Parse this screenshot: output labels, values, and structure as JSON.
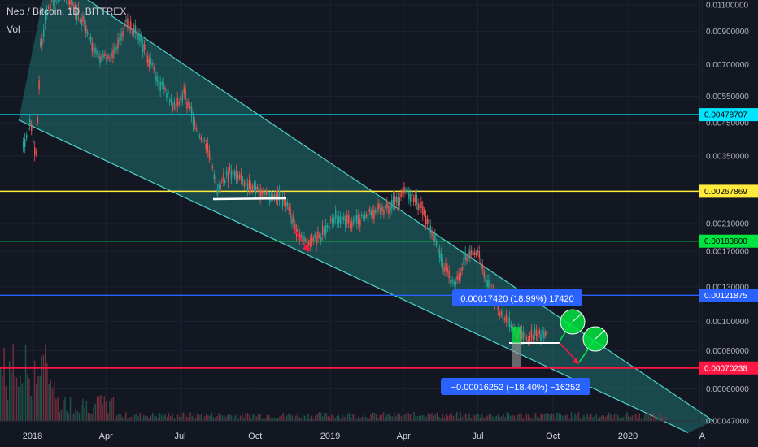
{
  "header": {
    "title": "Neo / Bitcoin, 1D, BITTREX",
    "volume_label": "Vol"
  },
  "chart_data": {
    "type": "candlestick",
    "symbol": "Neo / Bitcoin",
    "interval": "1D",
    "exchange": "BITTREX",
    "y_scale": "log",
    "y_ticks": [
      "0.01100000",
      "0.00900000",
      "0.00700000",
      "0.00550000",
      "0.00450000",
      "0.00350000",
      "0.00210000",
      "0.00170000",
      "0.00130000",
      "0.00100000",
      "0.00080000",
      "0.00060000",
      "0.00047000"
    ],
    "x_ticks": [
      "2018",
      "Apr",
      "Jul",
      "Oct",
      "2019",
      "Apr",
      "Jul",
      "Oct",
      "2020",
      "A"
    ],
    "horizontal_levels": [
      {
        "value": "0.00478707",
        "color": "#00e5ff"
      },
      {
        "value": "0.00267869",
        "color": "#ffeb3b"
      },
      {
        "value": "0.00183600",
        "color": "#00e640"
      },
      {
        "value": "0.00121875",
        "color": "#2962ff"
      },
      {
        "value": "0.00070238",
        "color": "#ff1744"
      }
    ],
    "measure_up": {
      "label": "0.00017420 (18.99%) 17420"
    },
    "measure_down": {
      "label": "−0.00016252 (−18.40%) −16252"
    },
    "price_path": [
      [
        "2017-12-20",
        0.0038
      ],
      [
        "2017-12-28",
        0.0045
      ],
      [
        "2018-01-05",
        0.0035
      ],
      [
        "2018-01-10",
        0.008
      ],
      [
        "2018-01-20",
        0.011
      ],
      [
        "2018-02-05",
        0.012
      ],
      [
        "2018-02-20",
        0.0108
      ],
      [
        "2018-03-05",
        0.0095
      ],
      [
        "2018-03-20",
        0.0075
      ],
      [
        "2018-04-05",
        0.0072
      ],
      [
        "2018-04-25",
        0.0095
      ],
      [
        "2018-05-10",
        0.0088
      ],
      [
        "2018-05-25",
        0.007
      ],
      [
        "2018-06-10",
        0.0058
      ],
      [
        "2018-06-25",
        0.005
      ],
      [
        "2018-07-05",
        0.0056
      ],
      [
        "2018-07-20",
        0.0044
      ],
      [
        "2018-08-05",
        0.0036
      ],
      [
        "2018-08-15",
        0.0027
      ],
      [
        "2018-08-30",
        0.0031
      ],
      [
        "2018-09-15",
        0.0029
      ],
      [
        "2018-10-01",
        0.0027
      ],
      [
        "2018-10-20",
        0.0026
      ],
      [
        "2018-11-05",
        0.0025
      ],
      [
        "2018-11-20",
        0.002
      ],
      [
        "2018-12-05",
        0.0018
      ],
      [
        "2018-12-20",
        0.0019
      ],
      [
        "2019-01-05",
        0.0022
      ],
      [
        "2019-01-25",
        0.0021
      ],
      [
        "2019-02-10",
        0.0022
      ],
      [
        "2019-02-25",
        0.0023
      ],
      [
        "2019-03-15",
        0.0024
      ],
      [
        "2019-03-30",
        0.0026
      ],
      [
        "2019-04-05",
        0.0027
      ],
      [
        "2019-04-20",
        0.0024
      ],
      [
        "2019-05-05",
        0.002
      ],
      [
        "2019-05-20",
        0.0015
      ],
      [
        "2019-06-01",
        0.0013
      ],
      [
        "2019-06-15",
        0.0016
      ],
      [
        "2019-06-30",
        0.0017
      ],
      [
        "2019-07-10",
        0.0014
      ],
      [
        "2019-07-25",
        0.0011
      ],
      [
        "2019-08-10",
        0.00095
      ],
      [
        "2019-08-25",
        0.00088
      ],
      [
        "2019-09-10",
        0.0009
      ],
      [
        "2019-09-25",
        0.00093
      ]
    ],
    "volume_note": "volume histogram along bottom"
  }
}
